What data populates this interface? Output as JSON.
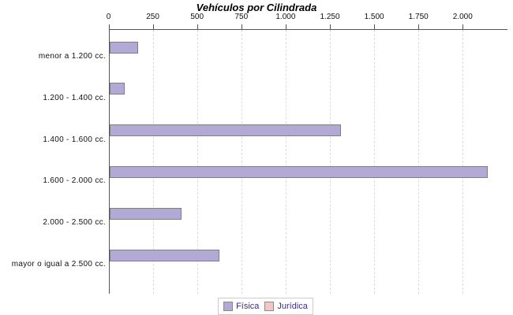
{
  "title": "Vehículos por Cilindrada",
  "chart_data": {
    "type": "bar",
    "orientation": "horizontal",
    "title": "Vehículos por Cilindrada",
    "categories": [
      "menor a 1.200 cc.",
      "1.200 - 1.400 cc.",
      "1.400 - 1.600 cc.",
      "1.600 - 2.000 cc.",
      "2.000 - 2.500 cc.",
      "mayor o igual a 2.500 cc."
    ],
    "series": [
      {
        "name": "Física",
        "color": "#b3a9d5",
        "values": [
          160,
          85,
          1305,
          2135,
          405,
          620
        ]
      },
      {
        "name": "Jurídica",
        "color": "#f5c6c6",
        "values": [
          0,
          0,
          0,
          0,
          0,
          0
        ]
      }
    ],
    "x_axis": {
      "min": 0,
      "max": 2250,
      "tick_interval": 250,
      "tick_labels": [
        "0",
        "250",
        "500",
        "750",
        "1.000",
        "1.250",
        "1.500",
        "1.750",
        "2.000"
      ],
      "position": "top"
    },
    "grid": "vertical-dashed",
    "legend_position": "bottom"
  },
  "colors": {
    "bar_border": "#7f7f7f",
    "axis": "#555555",
    "gridline": "#dcdcdc",
    "legend_text": "#3f2b8c",
    "legend_border": "#cccccc",
    "background": "#ffffff"
  }
}
